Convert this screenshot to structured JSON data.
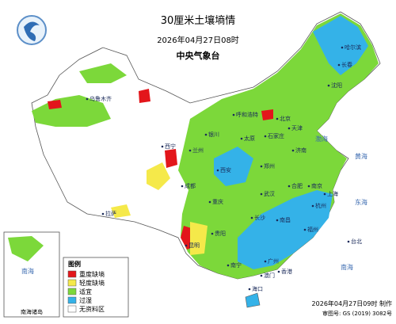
{
  "header": {
    "title": "30厘米土壤墒情",
    "time": "2026年04月27日08时",
    "issuer": "中央气象台"
  },
  "legend": {
    "title": "图例",
    "items": [
      {
        "label": "重度缺墒",
        "color": "#e3161b"
      },
      {
        "label": "轻度缺墒",
        "color": "#f5e94a"
      },
      {
        "label": "适宜",
        "color": "#7cd83a"
      },
      {
        "label": "过湿",
        "color": "#34b2e8"
      },
      {
        "label": "无资料区",
        "color": "#ffffff"
      }
    ]
  },
  "inset": {
    "label": "南海诸岛",
    "sea": "南海"
  },
  "seas": [
    "渤海",
    "黄海",
    "东海",
    "南海"
  ],
  "cities": [
    "哈尔滨",
    "长春",
    "沈阳",
    "北京",
    "天津",
    "石家庄",
    "太原",
    "呼和浩特",
    "济南",
    "郑州",
    "西安",
    "银川",
    "兰州",
    "西宁",
    "乌鲁木齐",
    "拉萨",
    "成都",
    "重庆",
    "武汉",
    "合肥",
    "南京",
    "上海",
    "杭州",
    "长沙",
    "南昌",
    "福州",
    "台北",
    "贵阳",
    "昆明",
    "南宁",
    "广州",
    "香港",
    "澳门",
    "海口"
  ],
  "footer": {
    "made": "2026年04月27日09时 制作",
    "approval": "审图号: GS (2019) 3082号"
  }
}
